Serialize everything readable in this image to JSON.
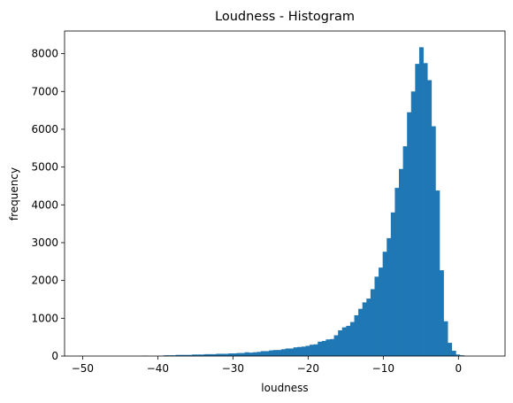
{
  "chart_data": {
    "type": "bar",
    "title": "Loudness - Histogram",
    "xlabel": "loudness",
    "ylabel": "frequency",
    "xlim": [
      -52.4,
      6.2
    ],
    "ylim": [
      0,
      8600
    ],
    "x_ticks": [
      -50,
      -40,
      -30,
      -20,
      -10,
      0
    ],
    "y_ticks": [
      0,
      1000,
      2000,
      3000,
      4000,
      5000,
      6000,
      7000,
      8000
    ],
    "bin_start": -49.5,
    "bin_width": 0.54,
    "bar_color": "#1f77b4",
    "values": [
      0,
      0,
      0,
      0,
      0,
      0,
      0,
      0,
      0,
      0,
      0,
      0,
      0,
      0,
      10,
      0,
      0,
      0,
      0,
      20,
      20,
      20,
      30,
      30,
      30,
      30,
      40,
      40,
      40,
      50,
      50,
      50,
      60,
      60,
      60,
      70,
      70,
      80,
      80,
      100,
      90,
      100,
      110,
      130,
      130,
      150,
      160,
      160,
      180,
      200,
      200,
      230,
      240,
      250,
      270,
      300,
      310,
      380,
      400,
      440,
      450,
      550,
      680,
      760,
      800,
      900,
      1080,
      1250,
      1420,
      1520,
      1770,
      2100,
      2340,
      2760,
      3120,
      3800,
      4450,
      4950,
      5550,
      6450,
      7000,
      7730,
      8170,
      7750,
      7300,
      6080,
      4380,
      2270,
      920,
      350,
      140,
      40,
      20,
      0,
      0,
      0,
      0,
      0,
      0,
      0,
      0,
      0,
      0,
      0,
      0,
      0,
      0
    ]
  }
}
